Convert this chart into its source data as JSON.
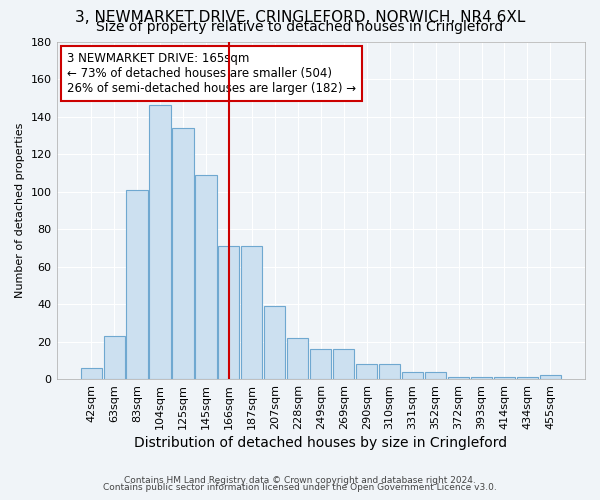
{
  "title": "3, NEWMARKET DRIVE, CRINGLEFORD, NORWICH, NR4 6XL",
  "subtitle": "Size of property relative to detached houses in Cringleford",
  "xlabel": "Distribution of detached houses by size in Cringleford",
  "ylabel": "Number of detached properties",
  "categories": [
    "42sqm",
    "63sqm",
    "83sqm",
    "104sqm",
    "125sqm",
    "145sqm",
    "166sqm",
    "187sqm",
    "207sqm",
    "228sqm",
    "249sqm",
    "269sqm",
    "290sqm",
    "310sqm",
    "331sqm",
    "352sqm",
    "372sqm",
    "393sqm",
    "414sqm",
    "434sqm",
    "455sqm"
  ],
  "values": [
    6,
    23,
    101,
    146,
    134,
    109,
    71,
    71,
    39,
    22,
    16,
    16,
    8,
    8,
    4,
    4,
    1,
    1,
    1,
    1,
    2
  ],
  "bar_color": "#cce0f0",
  "bar_edge_color": "#6fa8d0",
  "vline_x": 6,
  "vline_color": "#cc0000",
  "annotation_line1": "3 NEWMARKET DRIVE: 165sqm",
  "annotation_line2": "← 73% of detached houses are smaller (504)",
  "annotation_line3": "26% of semi-detached houses are larger (182) →",
  "annotation_box_color": "white",
  "annotation_box_edge_color": "#cc0000",
  "ylim": [
    0,
    180
  ],
  "yticks": [
    0,
    20,
    40,
    60,
    80,
    100,
    120,
    140,
    160,
    180
  ],
  "footer1": "Contains HM Land Registry data © Crown copyright and database right 2024.",
  "footer2": "Contains public sector information licensed under the Open Government Licence v3.0.",
  "background_color": "#f0f4f8",
  "grid_color": "white",
  "title_fontsize": 11,
  "subtitle_fontsize": 10,
  "ylabel_fontsize": 8,
  "xlabel_fontsize": 10,
  "tick_fontsize": 8
}
